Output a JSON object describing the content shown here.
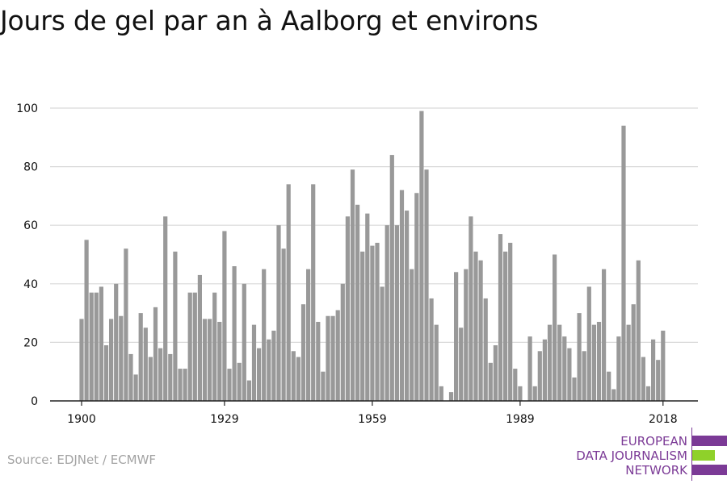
{
  "source": "Source: EDJNet / ECMWF",
  "logo": {
    "line1": "EUROPEAN",
    "line2": "DATA JOURNALISM",
    "line3": "NETWORK",
    "purple": "#7b3a96",
    "green": "#8fd12a"
  },
  "colors": {
    "bar": "#999999",
    "grid": "#d9d9d9",
    "axis": "#222222",
    "text": "#111111"
  },
  "chart_data": {
    "type": "bar",
    "title": "Jours de gel par an à Aalborg et environs",
    "xlabel": "",
    "ylabel": "",
    "ylim": [
      0,
      100
    ],
    "yticks": [
      0,
      20,
      40,
      60,
      80,
      100
    ],
    "xticks": [
      1900,
      1929,
      1959,
      1989,
      2018
    ],
    "grid": true,
    "legend": "none",
    "x": [
      1900,
      1901,
      1902,
      1903,
      1904,
      1905,
      1906,
      1907,
      1908,
      1909,
      1910,
      1911,
      1912,
      1913,
      1914,
      1915,
      1916,
      1917,
      1918,
      1919,
      1920,
      1921,
      1922,
      1923,
      1924,
      1925,
      1926,
      1927,
      1928,
      1929,
      1930,
      1931,
      1932,
      1933,
      1934,
      1935,
      1936,
      1937,
      1938,
      1939,
      1940,
      1941,
      1942,
      1943,
      1944,
      1945,
      1946,
      1947,
      1948,
      1949,
      1950,
      1951,
      1952,
      1953,
      1954,
      1955,
      1956,
      1957,
      1958,
      1959,
      1960,
      1961,
      1962,
      1963,
      1964,
      1965,
      1966,
      1967,
      1968,
      1969,
      1970,
      1971,
      1972,
      1973,
      1974,
      1975,
      1976,
      1977,
      1978,
      1979,
      1980,
      1981,
      1982,
      1983,
      1984,
      1985,
      1986,
      1987,
      1988,
      1989,
      1990,
      1991,
      1992,
      1993,
      1994,
      1995,
      1996,
      1997,
      1998,
      1999,
      2000,
      2001,
      2002,
      2003,
      2004,
      2005,
      2006,
      2007,
      2008,
      2009,
      2010,
      2011,
      2012,
      2013,
      2014,
      2015,
      2016,
      2017,
      2018
    ],
    "values": [
      28,
      55,
      37,
      37,
      39,
      19,
      28,
      40,
      29,
      52,
      16,
      9,
      30,
      25,
      15,
      32,
      18,
      63,
      16,
      51,
      11,
      11,
      37,
      37,
      43,
      28,
      28,
      37,
      27,
      58,
      11,
      46,
      13,
      40,
      7,
      26,
      18,
      45,
      21,
      24,
      60,
      52,
      74,
      17,
      15,
      33,
      45,
      74,
      27,
      10,
      29,
      29,
      31,
      40,
      63,
      79,
      67,
      51,
      64,
      53,
      54,
      39,
      60,
      84,
      60,
      72,
      65,
      45,
      71,
      99,
      79,
      35,
      26,
      5,
      0,
      3,
      44,
      25,
      45,
      63,
      51,
      48,
      35,
      13,
      19,
      57,
      51,
      54,
      11,
      5,
      0,
      22,
      5,
      17,
      21,
      26,
      50,
      26,
      22,
      18,
      8,
      30,
      17,
      39,
      26,
      27,
      45,
      10,
      4,
      22,
      94,
      26,
      33,
      48,
      15,
      5,
      21,
      14,
      24
    ]
  }
}
